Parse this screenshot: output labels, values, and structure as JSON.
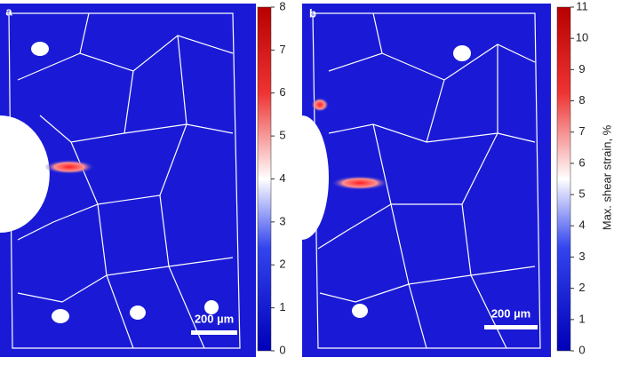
{
  "panels": [
    {
      "label": "a",
      "scale_bar": "200 µm",
      "colorbar": {
        "lim": [
          0,
          8
        ],
        "ticks": [
          0,
          1,
          2,
          3,
          4,
          5,
          6,
          7,
          8
        ]
      }
    },
    {
      "label": "b",
      "scale_bar": "200 µm",
      "colorbar": {
        "lim": [
          0,
          11
        ],
        "ticks": [
          0,
          1,
          2,
          3,
          4,
          5,
          6,
          7,
          8,
          9,
          10,
          11
        ],
        "axis_label": "Max. shear strain, %"
      }
    }
  ]
}
